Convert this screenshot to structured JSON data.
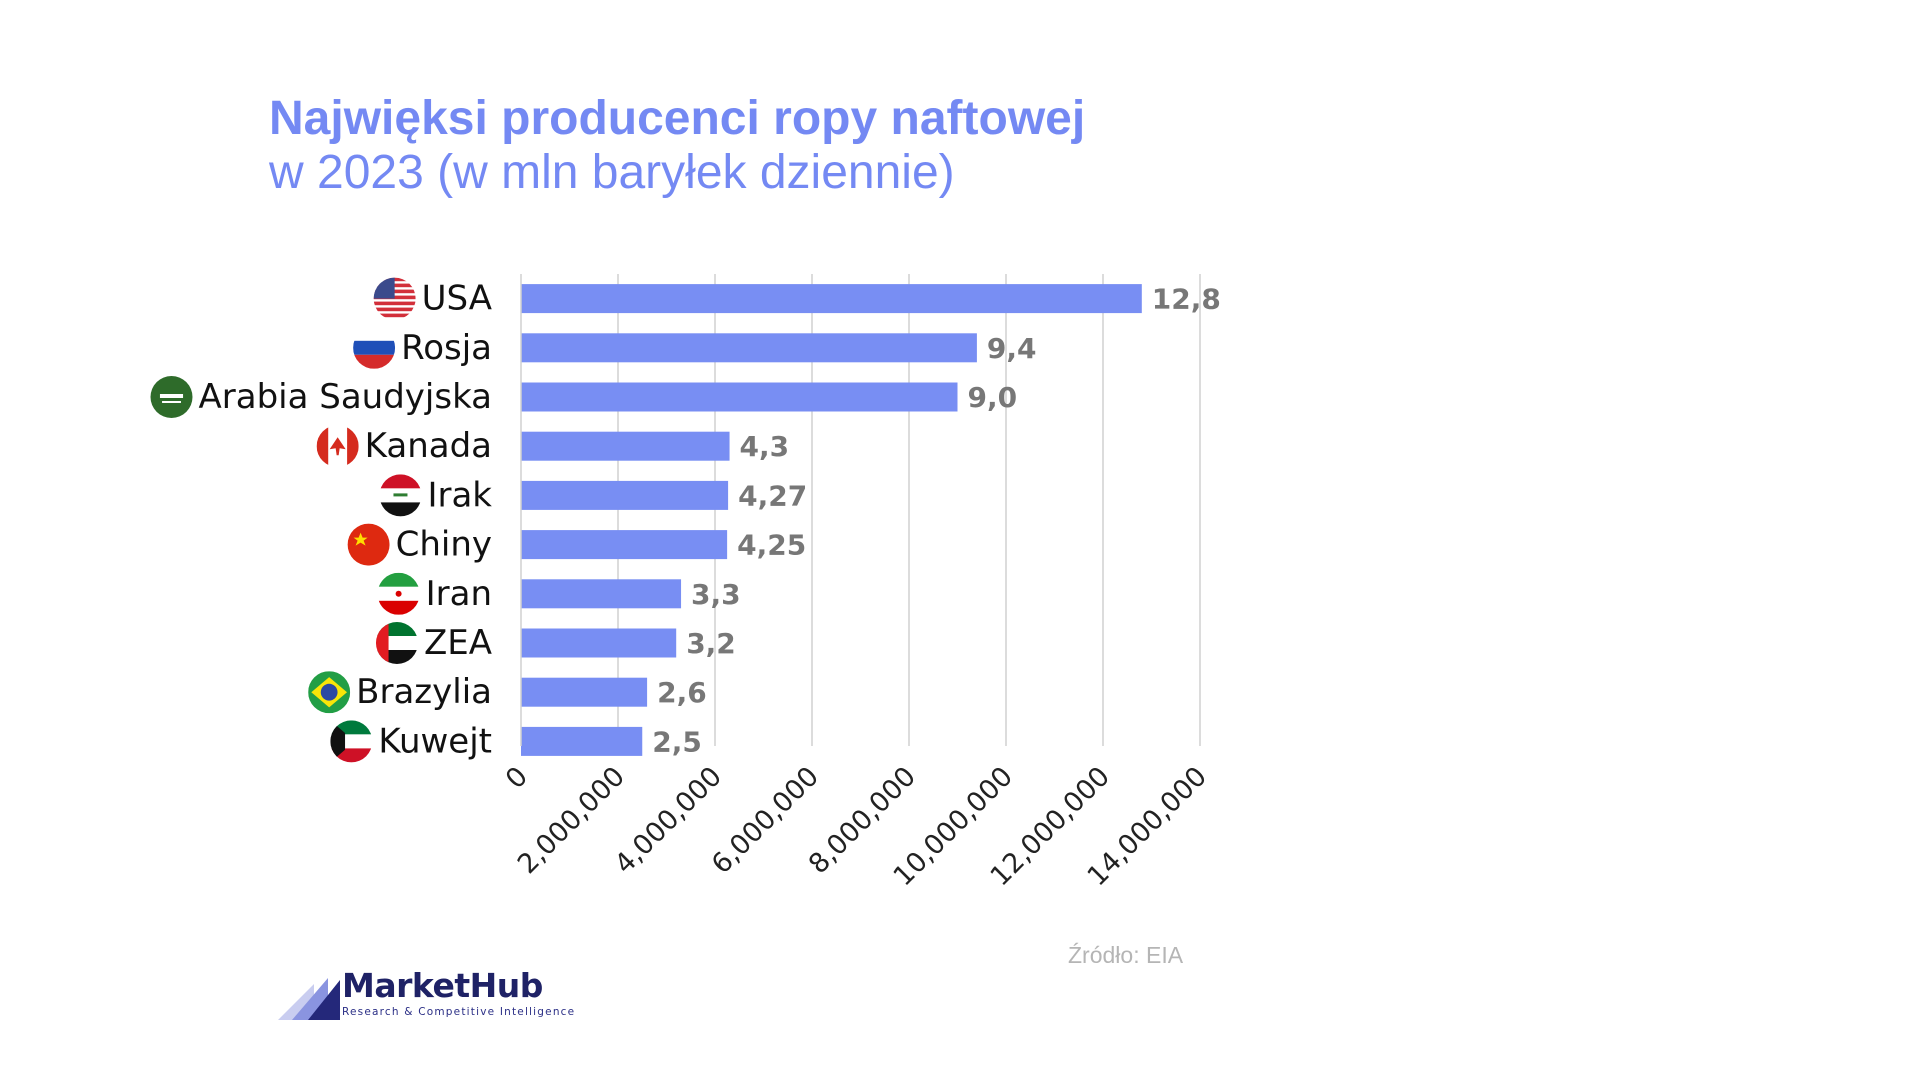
{
  "title": {
    "line1": "Najwięksi producenci ropy naftowej",
    "line2": "w 2023 (w mln baryłek dziennie)"
  },
  "chart_data": {
    "type": "bar",
    "orientation": "horizontal",
    "categories": [
      "USA",
      "Rosja",
      "Arabia Saudyjska",
      "Kanada",
      "Irak",
      "Chiny",
      "Iran",
      "ZEA",
      "Brazylia",
      "Kuwejt"
    ],
    "values": [
      12800000,
      9400000,
      9000000,
      4300000,
      4270000,
      4250000,
      3300000,
      3200000,
      2600000,
      2500000
    ],
    "data_labels": [
      "12,8",
      "9,4",
      "9,0",
      "4,3",
      "4,27",
      "4,25",
      "3,3",
      "3,2",
      "2,6",
      "2,5"
    ],
    "xlim": [
      0,
      14000000
    ],
    "x_ticks": [
      0,
      2000000,
      4000000,
      6000000,
      8000000,
      10000000,
      12000000,
      14000000
    ],
    "x_tick_labels": [
      "0",
      "2,000,000",
      "4,000,000",
      "6,000,000",
      "8,000,000",
      "10,000,000",
      "12,000,000",
      "14,000,000"
    ],
    "grid": true,
    "bar_color": "#788ef3",
    "label_color": "#777777",
    "flag_icons": [
      "usa-flag-icon",
      "russia-flag-icon",
      "saudi-arabia-flag-icon",
      "canada-flag-icon",
      "iraq-flag-icon",
      "china-flag-icon",
      "iran-flag-icon",
      "uae-flag-icon",
      "brazil-flag-icon",
      "kuwait-flag-icon"
    ]
  },
  "source": "Źródło: EIA",
  "logo": {
    "name": "MarketHub",
    "tagline": "Research & Competitive Intelligence"
  }
}
